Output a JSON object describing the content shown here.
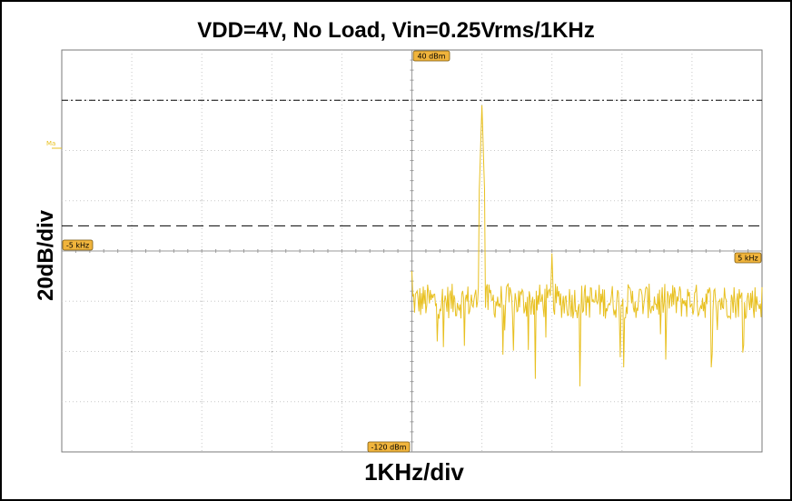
{
  "chart_data": {
    "type": "line",
    "title": "VDD=4V, No Load, Vin=0.25Vrms/1KHz",
    "xlabel": "1KHz/div",
    "ylabel": "20dB/div",
    "xlim": [
      -5,
      5
    ],
    "ylim": [
      -120,
      40
    ],
    "grid": true,
    "markers": {
      "top": "40 dBm",
      "bottom": "-120 dBm",
      "left": "-5 kHz",
      "right": "5 kHz",
      "ma": "Ma"
    },
    "reference_levels": [
      20,
      -30
    ],
    "series": [
      {
        "color": "#e8c020",
        "start_x": 0,
        "end_x": 5,
        "noise_floor": -60,
        "peaks": [
          {
            "x": 1,
            "y": 18
          },
          {
            "x": 2,
            "y": -41
          }
        ]
      }
    ]
  },
  "colors": {
    "trace": "#e8c020",
    "grid": "#c8c8c8",
    "tag": "#f0b43c"
  }
}
